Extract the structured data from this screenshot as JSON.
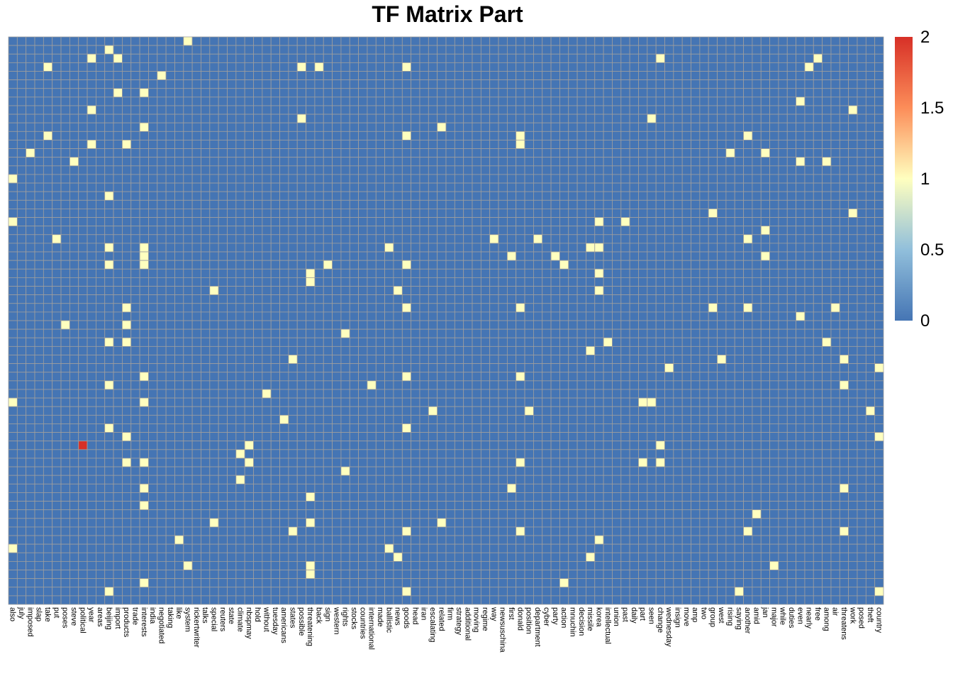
{
  "chart_data": {
    "type": "heatmap",
    "title": "TF Matrix Part",
    "xlabel": "",
    "ylabel": "",
    "columns": [
      "also",
      "july",
      "imposed",
      "slap",
      "take",
      "put",
      "poses",
      "steve",
      "political",
      "year",
      "areas",
      "beijing",
      "import",
      "products",
      "trade",
      "interests",
      "india",
      "negotiated",
      "taking",
      "like",
      "system",
      "rickertwriter",
      "talks",
      "special",
      "reuters",
      "state",
      "climate",
      "nbspmay",
      "hold",
      "without",
      "tuesday",
      "americans",
      "states",
      "possible",
      "threatening",
      "back",
      "sign",
      "western",
      "rights",
      "stocks",
      "countries",
      "international",
      "made",
      "ballistic",
      "news",
      "goods",
      "head",
      "iran",
      "escalating",
      "related",
      "firm",
      "strategy",
      "additional",
      "moving",
      "regime",
      "way",
      "newsuschina",
      "first",
      "donald",
      "position",
      "department",
      "cyber",
      "party",
      "action",
      "mnuchin",
      "decision",
      "missile",
      "korea",
      "intellectual",
      "union",
      "past",
      "daily",
      "part",
      "seen",
      "change",
      "wednesday",
      "insign",
      "move",
      "amp",
      "two",
      "group",
      "west",
      "rising",
      "saying",
      "another",
      "amid",
      "jan",
      "major",
      "while",
      "duties",
      "even",
      "nearly",
      "free",
      "among",
      "air",
      "threatens",
      "work",
      "posed",
      "theft",
      "country"
    ],
    "rows": 66,
    "grid": true,
    "value_range": [
      0,
      2
    ],
    "color_scale": {
      "low": "#4575b4",
      "mid": "#ffffbf",
      "high": "#d73027"
    },
    "legend": {
      "position": "right",
      "ticks": [
        "0",
        "0.5",
        "1",
        "1.5",
        "2"
      ]
    },
    "nonzero_cells": [
      [
        0,
        20,
        1
      ],
      [
        1,
        11,
        1
      ],
      [
        2,
        9,
        1
      ],
      [
        2,
        12,
        1
      ],
      [
        2,
        74,
        1
      ],
      [
        2,
        92,
        1
      ],
      [
        3,
        4,
        1
      ],
      [
        3,
        45,
        1
      ],
      [
        3,
        35,
        1
      ],
      [
        3,
        33,
        1
      ],
      [
        3,
        91,
        1
      ],
      [
        4,
        17,
        1
      ],
      [
        6,
        12,
        1
      ],
      [
        6,
        15,
        1
      ],
      [
        7,
        90,
        1
      ],
      [
        8,
        9,
        1
      ],
      [
        8,
        96,
        1
      ],
      [
        9,
        33,
        1
      ],
      [
        9,
        73,
        1
      ],
      [
        10,
        15,
        1
      ],
      [
        10,
        49,
        1
      ],
      [
        11,
        4,
        1
      ],
      [
        11,
        45,
        1
      ],
      [
        11,
        58,
        1
      ],
      [
        11,
        84,
        1
      ],
      [
        12,
        9,
        1
      ],
      [
        12,
        13,
        1
      ],
      [
        12,
        58,
        1
      ],
      [
        13,
        2,
        1
      ],
      [
        13,
        82,
        1
      ],
      [
        13,
        86,
        1
      ],
      [
        14,
        7,
        1
      ],
      [
        14,
        90,
        1
      ],
      [
        14,
        93,
        1
      ],
      [
        16,
        0,
        1
      ],
      [
        18,
        11,
        1
      ],
      [
        20,
        80,
        1
      ],
      [
        20,
        96,
        1
      ],
      [
        21,
        0,
        1
      ],
      [
        21,
        67,
        1
      ],
      [
        21,
        70,
        1
      ],
      [
        22,
        86,
        1
      ],
      [
        23,
        5,
        1
      ],
      [
        23,
        55,
        1
      ],
      [
        23,
        60,
        1
      ],
      [
        23,
        84,
        1
      ],
      [
        24,
        11,
        1
      ],
      [
        24,
        15,
        1
      ],
      [
        24,
        43,
        1
      ],
      [
        24,
        66,
        1
      ],
      [
        24,
        67,
        1
      ],
      [
        25,
        15,
        1
      ],
      [
        25,
        57,
        1
      ],
      [
        25,
        62,
        1
      ],
      [
        25,
        86,
        1
      ],
      [
        26,
        11,
        1
      ],
      [
        26,
        15,
        1
      ],
      [
        26,
        36,
        1
      ],
      [
        26,
        45,
        1
      ],
      [
        26,
        63,
        1
      ],
      [
        27,
        34,
        1
      ],
      [
        27,
        67,
        1
      ],
      [
        28,
        34,
        1
      ],
      [
        29,
        23,
        1
      ],
      [
        29,
        44,
        1
      ],
      [
        29,
        67,
        1
      ],
      [
        31,
        13,
        1
      ],
      [
        31,
        45,
        1
      ],
      [
        31,
        58,
        1
      ],
      [
        31,
        80,
        1
      ],
      [
        31,
        84,
        1
      ],
      [
        31,
        94,
        1
      ],
      [
        32,
        90,
        1
      ],
      [
        33,
        6,
        1
      ],
      [
        33,
        13,
        1
      ],
      [
        34,
        38,
        1
      ],
      [
        35,
        11,
        1
      ],
      [
        35,
        13,
        1
      ],
      [
        35,
        68,
        1
      ],
      [
        35,
        93,
        1
      ],
      [
        36,
        66,
        1
      ],
      [
        37,
        32,
        1
      ],
      [
        37,
        81,
        1
      ],
      [
        37,
        95,
        1
      ],
      [
        38,
        75,
        1
      ],
      [
        38,
        99,
        1
      ],
      [
        39,
        15,
        1
      ],
      [
        39,
        45,
        1
      ],
      [
        39,
        58,
        1
      ],
      [
        40,
        11,
        1
      ],
      [
        40,
        41,
        1
      ],
      [
        40,
        95,
        1
      ],
      [
        41,
        29,
        1
      ],
      [
        42,
        0,
        1
      ],
      [
        42,
        15,
        1
      ],
      [
        42,
        72,
        1
      ],
      [
        42,
        73,
        1
      ],
      [
        43,
        48,
        1
      ],
      [
        43,
        59,
        1
      ],
      [
        43,
        98,
        1
      ],
      [
        44,
        31,
        1
      ],
      [
        45,
        11,
        1
      ],
      [
        45,
        45,
        1
      ],
      [
        46,
        13,
        1
      ],
      [
        46,
        99,
        1
      ],
      [
        47,
        8,
        2
      ],
      [
        47,
        27,
        1
      ],
      [
        47,
        74,
        1
      ],
      [
        48,
        26,
        1
      ],
      [
        49,
        13,
        1
      ],
      [
        49,
        15,
        1
      ],
      [
        49,
        27,
        1
      ],
      [
        49,
        58,
        1
      ],
      [
        49,
        72,
        1
      ],
      [
        49,
        74,
        1
      ],
      [
        50,
        38,
        1
      ],
      [
        51,
        26,
        1
      ],
      [
        52,
        15,
        1
      ],
      [
        52,
        57,
        1
      ],
      [
        52,
        95,
        1
      ],
      [
        53,
        34,
        1
      ],
      [
        54,
        15,
        1
      ],
      [
        55,
        85,
        1
      ],
      [
        56,
        23,
        1
      ],
      [
        56,
        34,
        1
      ],
      [
        56,
        49,
        1
      ],
      [
        57,
        32,
        1
      ],
      [
        57,
        45,
        1
      ],
      [
        57,
        58,
        1
      ],
      [
        57,
        84,
        1
      ],
      [
        57,
        95,
        1
      ],
      [
        58,
        19,
        1
      ],
      [
        58,
        67,
        1
      ],
      [
        59,
        0,
        1
      ],
      [
        59,
        43,
        1
      ],
      [
        60,
        44,
        1
      ],
      [
        60,
        66,
        1
      ],
      [
        61,
        20,
        1
      ],
      [
        61,
        34,
        1
      ],
      [
        61,
        87,
        1
      ],
      [
        62,
        34,
        1
      ],
      [
        63,
        15,
        1
      ],
      [
        63,
        63,
        1
      ],
      [
        64,
        11,
        1
      ],
      [
        64,
        45,
        1
      ],
      [
        64,
        83,
        1
      ],
      [
        64,
        99,
        1
      ]
    ]
  }
}
